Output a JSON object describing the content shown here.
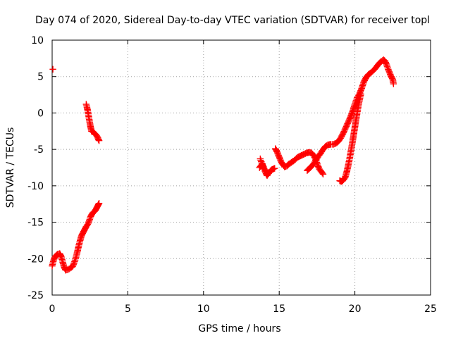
{
  "chart_data": {
    "type": "scatter",
    "title": "Day 074 of 2020, Sidereal Day-to-day VTEC variation (SDTVAR) for receiver topl",
    "xlabel": "GPS time / hours",
    "ylabel": "SDTVAR / TECUs",
    "xlim": [
      0,
      25
    ],
    "ylim": [
      -25,
      10
    ],
    "xticks": [
      0,
      5,
      10,
      15,
      20,
      25
    ],
    "yticks": [
      -25,
      -20,
      -15,
      -10,
      -5,
      0,
      5,
      10
    ],
    "grid": true,
    "marker": "+",
    "color": "#ff0000",
    "series": [
      {
        "segments": [
          [
            [
              0.05,
              6.0
            ]
          ],
          [
            [
              0.0,
              -21.0
            ],
            [
              0.1,
              -20.2
            ],
            [
              0.2,
              -19.7
            ],
            [
              0.35,
              -19.4
            ],
            [
              0.5,
              -19.3
            ],
            [
              0.6,
              -19.7
            ],
            [
              0.7,
              -20.5
            ],
            [
              0.8,
              -21.2
            ],
            [
              0.9,
              -21.6
            ],
            [
              1.05,
              -21.5
            ],
            [
              1.2,
              -21.3
            ],
            [
              1.35,
              -21.1
            ],
            [
              1.45,
              -20.6
            ],
            [
              1.55,
              -20.0
            ],
            [
              1.65,
              -19.2
            ],
            [
              1.75,
              -18.3
            ],
            [
              1.85,
              -17.5
            ],
            [
              1.95,
              -16.8
            ],
            [
              2.05,
              -16.4
            ],
            [
              2.15,
              -16.0
            ],
            [
              2.25,
              -15.6
            ],
            [
              2.35,
              -15.3
            ],
            [
              2.45,
              -14.8
            ],
            [
              2.55,
              -14.2
            ],
            [
              2.65,
              -13.8
            ],
            [
              2.75,
              -13.6
            ],
            [
              2.85,
              -13.4
            ],
            [
              2.95,
              -13.0
            ],
            [
              3.05,
              -12.6
            ],
            [
              3.1,
              -12.4
            ]
          ],
          [
            [
              2.25,
              1.2
            ],
            [
              2.3,
              0.8
            ],
            [
              2.35,
              0.3
            ],
            [
              2.4,
              -0.3
            ],
            [
              2.45,
              -0.9
            ],
            [
              2.5,
              -1.5
            ],
            [
              2.55,
              -2.0
            ],
            [
              2.6,
              -2.5
            ],
            [
              2.7,
              -2.6
            ],
            [
              2.8,
              -2.8
            ],
            [
              2.9,
              -3.0
            ],
            [
              3.0,
              -3.3
            ],
            [
              3.05,
              -3.6
            ],
            [
              3.1,
              -3.8
            ]
          ],
          [
            [
              13.7,
              -7.5
            ],
            [
              13.8,
              -7.2
            ],
            [
              13.9,
              -7.0
            ],
            [
              14.0,
              -7.6
            ],
            [
              14.1,
              -8.2
            ],
            [
              14.2,
              -8.6
            ],
            [
              14.3,
              -8.3
            ],
            [
              14.4,
              -8.0
            ],
            [
              14.5,
              -7.8
            ],
            [
              14.6,
              -7.7
            ],
            [
              14.7,
              -7.6
            ]
          ],
          [
            [
              13.75,
              -6.3
            ],
            [
              13.85,
              -6.9
            ],
            [
              13.95,
              -7.5
            ],
            [
              14.05,
              -7.8
            ],
            [
              14.15,
              -8.0
            ]
          ],
          [
            [
              14.75,
              -4.9
            ],
            [
              14.85,
              -5.3
            ],
            [
              14.95,
              -5.8
            ],
            [
              15.05,
              -6.3
            ],
            [
              15.15,
              -6.8
            ],
            [
              15.25,
              -7.1
            ],
            [
              15.35,
              -7.4
            ],
            [
              15.5,
              -7.3
            ],
            [
              15.65,
              -7.0
            ],
            [
              15.8,
              -6.8
            ],
            [
              16.0,
              -6.5
            ],
            [
              16.2,
              -6.1
            ],
            [
              16.4,
              -5.9
            ],
            [
              16.6,
              -5.7
            ],
            [
              16.8,
              -5.5
            ],
            [
              17.0,
              -5.4
            ],
            [
              17.15,
              -5.5
            ],
            [
              17.3,
              -5.9
            ],
            [
              17.45,
              -6.6
            ],
            [
              17.55,
              -7.2
            ],
            [
              17.65,
              -7.7
            ],
            [
              17.8,
              -8.1
            ],
            [
              17.9,
              -8.4
            ]
          ],
          [
            [
              16.85,
              -7.9
            ],
            [
              17.0,
              -7.6
            ],
            [
              17.15,
              -7.3
            ],
            [
              17.3,
              -6.9
            ],
            [
              17.45,
              -6.4
            ],
            [
              17.6,
              -5.9
            ],
            [
              17.75,
              -5.5
            ],
            [
              17.9,
              -5.0
            ],
            [
              18.05,
              -4.6
            ],
            [
              18.2,
              -4.4
            ],
            [
              18.4,
              -4.3
            ],
            [
              18.6,
              -4.3
            ],
            [
              18.8,
              -4.1
            ],
            [
              18.95,
              -3.8
            ],
            [
              19.1,
              -3.3
            ],
            [
              19.25,
              -2.7
            ],
            [
              19.4,
              -2.0
            ],
            [
              19.55,
              -1.3
            ],
            [
              19.7,
              -0.6
            ],
            [
              19.85,
              0.2
            ],
            [
              19.95,
              0.9
            ],
            [
              20.05,
              1.5
            ],
            [
              20.15,
              2.1
            ],
            [
              20.3,
              2.6
            ],
            [
              20.45,
              3.4
            ],
            [
              20.6,
              4.3
            ],
            [
              20.75,
              4.9
            ],
            [
              20.9,
              5.3
            ],
            [
              21.1,
              5.6
            ],
            [
              21.3,
              6.0
            ],
            [
              21.45,
              6.4
            ],
            [
              21.6,
              6.8
            ],
            [
              21.75,
              7.1
            ],
            [
              21.9,
              7.3
            ],
            [
              22.0,
              7.1
            ],
            [
              22.1,
              6.6
            ],
            [
              22.2,
              6.0
            ],
            [
              22.3,
              5.5
            ],
            [
              22.4,
              5.0
            ],
            [
              22.5,
              4.6
            ],
            [
              22.55,
              4.0
            ]
          ],
          [
            [
              19.0,
              -9.3
            ],
            [
              19.1,
              -9.4
            ],
            [
              19.2,
              -9.3
            ],
            [
              19.35,
              -8.9
            ],
            [
              19.45,
              -8.2
            ],
            [
              19.55,
              -7.3
            ],
            [
              19.65,
              -6.3
            ],
            [
              19.75,
              -5.1
            ],
            [
              19.85,
              -3.9
            ],
            [
              19.95,
              -2.6
            ],
            [
              20.05,
              -1.3
            ],
            [
              20.15,
              0.0
            ],
            [
              20.25,
              1.2
            ],
            [
              20.35,
              2.2
            ],
            [
              20.4,
              2.6
            ]
          ]
        ]
      }
    ]
  }
}
